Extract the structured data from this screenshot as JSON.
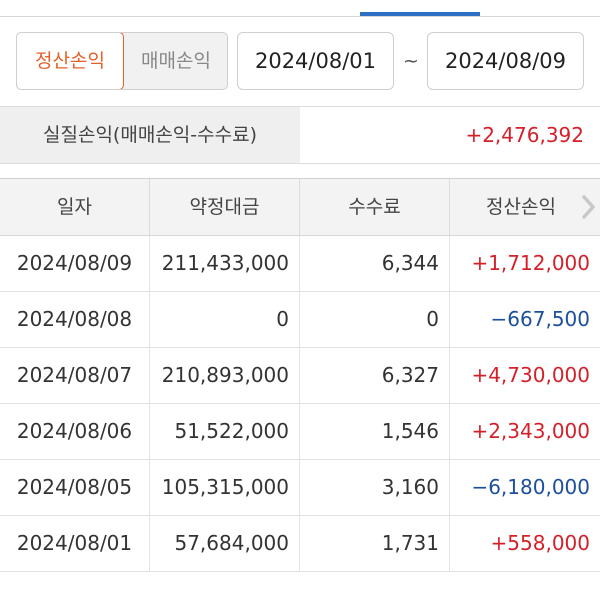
{
  "tabs": {
    "settlement_pl": "정산손익",
    "trading_pl": "매매손익"
  },
  "date_range": {
    "start": "2024/08/01",
    "separator": "~",
    "end": "2024/08/09"
  },
  "summary": {
    "label": "실질손익(매매손익-수수료)",
    "value": "+2,476,392"
  },
  "table": {
    "headers": [
      "일자",
      "약정대금",
      "수수료",
      "정산손익"
    ],
    "rows": [
      {
        "date": "2024/08/09",
        "amount": "211,433,000",
        "fee": "6,344",
        "pl": "+1,712,000",
        "sign": "pos"
      },
      {
        "date": "2024/08/08",
        "amount": "0",
        "fee": "0",
        "pl": "−667,500",
        "sign": "neg"
      },
      {
        "date": "2024/08/07",
        "amount": "210,893,000",
        "fee": "6,327",
        "pl": "+4,730,000",
        "sign": "pos"
      },
      {
        "date": "2024/08/06",
        "amount": "51,522,000",
        "fee": "1,546",
        "pl": "+2,343,000",
        "sign": "pos"
      },
      {
        "date": "2024/08/05",
        "amount": "105,315,000",
        "fee": "3,160",
        "pl": "−6,180,000",
        "sign": "neg"
      },
      {
        "date": "2024/08/01",
        "amount": "57,684,000",
        "fee": "1,731",
        "pl": "+558,000",
        "sign": "pos"
      }
    ]
  },
  "icons": {
    "scroll_right": "chevron-right-icon"
  },
  "colors": {
    "accent": "#e4612a",
    "positive": "#d4202a",
    "negative": "#1c4f9c",
    "tab_indicator": "#2f6fc3"
  }
}
